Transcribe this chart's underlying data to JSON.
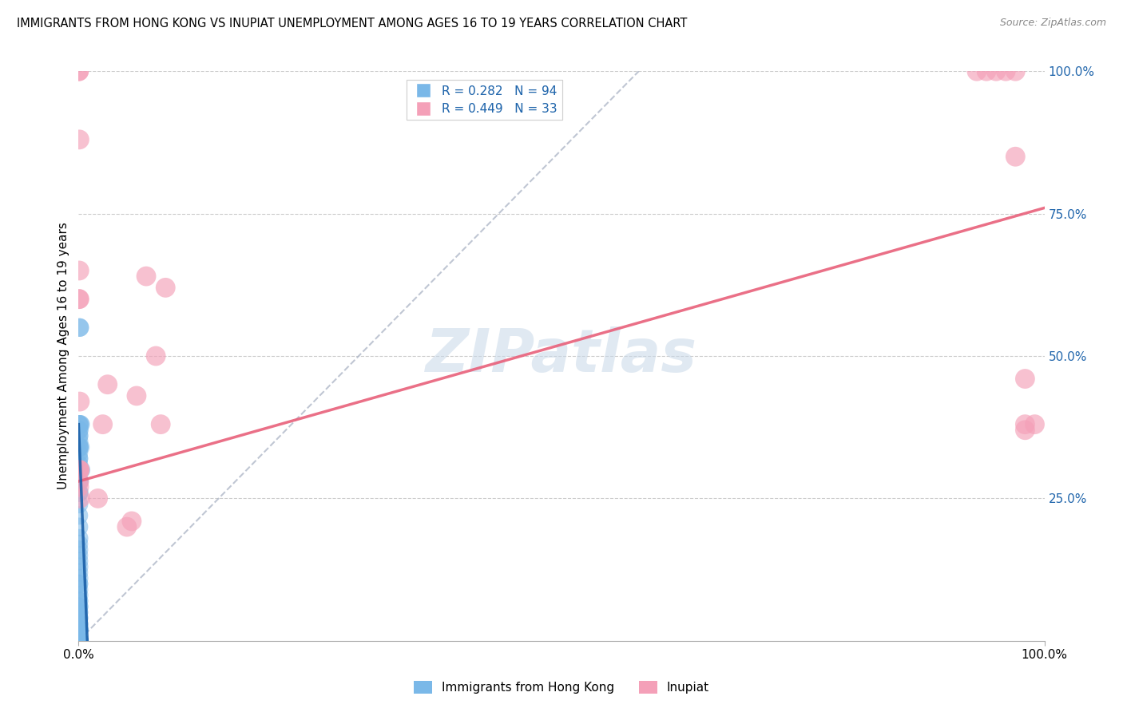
{
  "title": "IMMIGRANTS FROM HONG KONG VS INUPIAT UNEMPLOYMENT AMONG AGES 16 TO 19 YEARS CORRELATION CHART",
  "source": "Source: ZipAtlas.com",
  "ylabel": "Unemployment Among Ages 16 to 19 years",
  "legend_label1": "Immigrants from Hong Kong",
  "legend_label2": "Inupiat",
  "r1": 0.282,
  "n1": 94,
  "r2": 0.449,
  "n2": 33,
  "color1": "#7ab8e8",
  "color2": "#f4a0b8",
  "line1_color": "#1a5fa8",
  "line2_color": "#e8607a",
  "gray_color": "#b0b8c8",
  "watermark_color": "#c8d8e8",
  "blue_points_x": [
    0.0002,
    0.0003,
    0.0004,
    0.0005,
    0.0003,
    0.0002,
    0.0004,
    0.0006,
    0.0003,
    0.0002,
    0.0005,
    0.0003,
    0.0002,
    0.0004,
    0.0003,
    0.0002,
    0.0005,
    0.0004,
    0.0003,
    0.0002,
    0.0006,
    0.0003,
    0.0002,
    0.0004,
    0.0003,
    0.0002,
    0.0003,
    0.0004,
    0.0002,
    0.0005,
    0.0002,
    0.0003,
    0.0004,
    0.0002,
    0.0003,
    0.0002,
    0.0003,
    0.0004,
    0.0002,
    0.0003,
    0.0003,
    0.0003,
    0.0002,
    0.0004,
    0.0003,
    0.0002,
    0.0003,
    0.0004,
    0.0002,
    0.0003,
    0.0005,
    0.0002,
    0.0003,
    0.0002,
    0.0004,
    0.0003,
    0.0002,
    0.0003,
    0.0004,
    0.0002,
    0.0004,
    0.0003,
    0.0002,
    0.0003,
    0.0002,
    0.0004,
    0.0003,
    0.0002,
    0.0003,
    0.0002,
    0.0003,
    0.0004,
    0.0002,
    0.0003,
    0.0002,
    0.0004,
    0.0003,
    0.0002,
    0.0005,
    0.0004,
    0.0003,
    0.0002,
    0.0003,
    0.0002,
    0.0007,
    0.0008,
    0.001,
    0.0012,
    0.0015,
    0.002,
    0.0018,
    0.0025,
    0.0008,
    0.0006
  ],
  "blue_points_y": [
    0.0,
    0.0,
    0.0,
    0.0,
    0.0,
    0.0,
    0.0,
    0.0,
    0.0,
    0.0,
    0.0,
    0.0,
    0.0,
    0.0,
    0.0,
    0.0,
    0.0,
    0.0,
    0.0,
    0.0,
    0.0,
    0.0,
    0.0,
    0.0,
    0.0,
    0.0,
    0.0,
    0.0,
    0.0,
    0.0,
    0.0,
    0.0,
    0.0,
    0.0,
    0.0,
    0.0,
    0.0,
    0.0,
    0.0,
    0.0,
    0.02,
    0.02,
    0.02,
    0.02,
    0.03,
    0.03,
    0.04,
    0.04,
    0.05,
    0.05,
    0.06,
    0.06,
    0.07,
    0.07,
    0.08,
    0.09,
    0.1,
    0.1,
    0.11,
    0.12,
    0.13,
    0.14,
    0.15,
    0.16,
    0.17,
    0.18,
    0.2,
    0.22,
    0.24,
    0.26,
    0.28,
    0.3,
    0.32,
    0.34,
    0.36,
    0.38,
    0.38,
    0.37,
    0.36,
    0.35,
    0.34,
    0.33,
    0.32,
    0.31,
    0.37,
    0.34,
    0.55,
    0.55,
    0.38,
    0.38,
    0.34,
    0.3,
    0.28,
    0.26
  ],
  "pink_points_x": [
    0.0002,
    0.0003,
    0.0003,
    0.0005,
    0.0005,
    0.0006,
    0.0007,
    0.0008,
    0.0008,
    0.001,
    0.001,
    0.0012,
    0.0015,
    0.02,
    0.025,
    0.03,
    0.05,
    0.055,
    0.06,
    0.07,
    0.08,
    0.085,
    0.09,
    0.93,
    0.94,
    0.95,
    0.96,
    0.97,
    0.97,
    0.98,
    0.98,
    0.98,
    0.99
  ],
  "pink_points_y": [
    1.0,
    1.0,
    0.6,
    0.27,
    0.3,
    0.28,
    0.65,
    0.6,
    0.88,
    0.3,
    0.3,
    0.42,
    0.25,
    0.25,
    0.38,
    0.45,
    0.2,
    0.21,
    0.43,
    0.64,
    0.5,
    0.38,
    0.62,
    1.0,
    1.0,
    1.0,
    1.0,
    1.0,
    0.85,
    0.37,
    0.38,
    0.46,
    0.38
  ],
  "blue_line_x": [
    0.0,
    0.009
  ],
  "blue_line_y": [
    0.38,
    0.0
  ],
  "pink_line_x": [
    0.0,
    1.0
  ],
  "pink_line_y": [
    0.28,
    0.76
  ],
  "gray_line_x": [
    0.0,
    0.58
  ],
  "gray_line_y": [
    0.0,
    1.0
  ],
  "xlim": [
    0.0,
    1.0
  ],
  "ylim": [
    0.0,
    1.0
  ],
  "yticks": [
    0.25,
    0.5,
    0.75,
    1.0
  ],
  "ytick_labels": [
    "25.0%",
    "50.0%",
    "75.0%",
    "100.0%"
  ],
  "xtick_positions": [
    0.0,
    1.0
  ],
  "xtick_labels": [
    "0.0%",
    "100.0%"
  ]
}
